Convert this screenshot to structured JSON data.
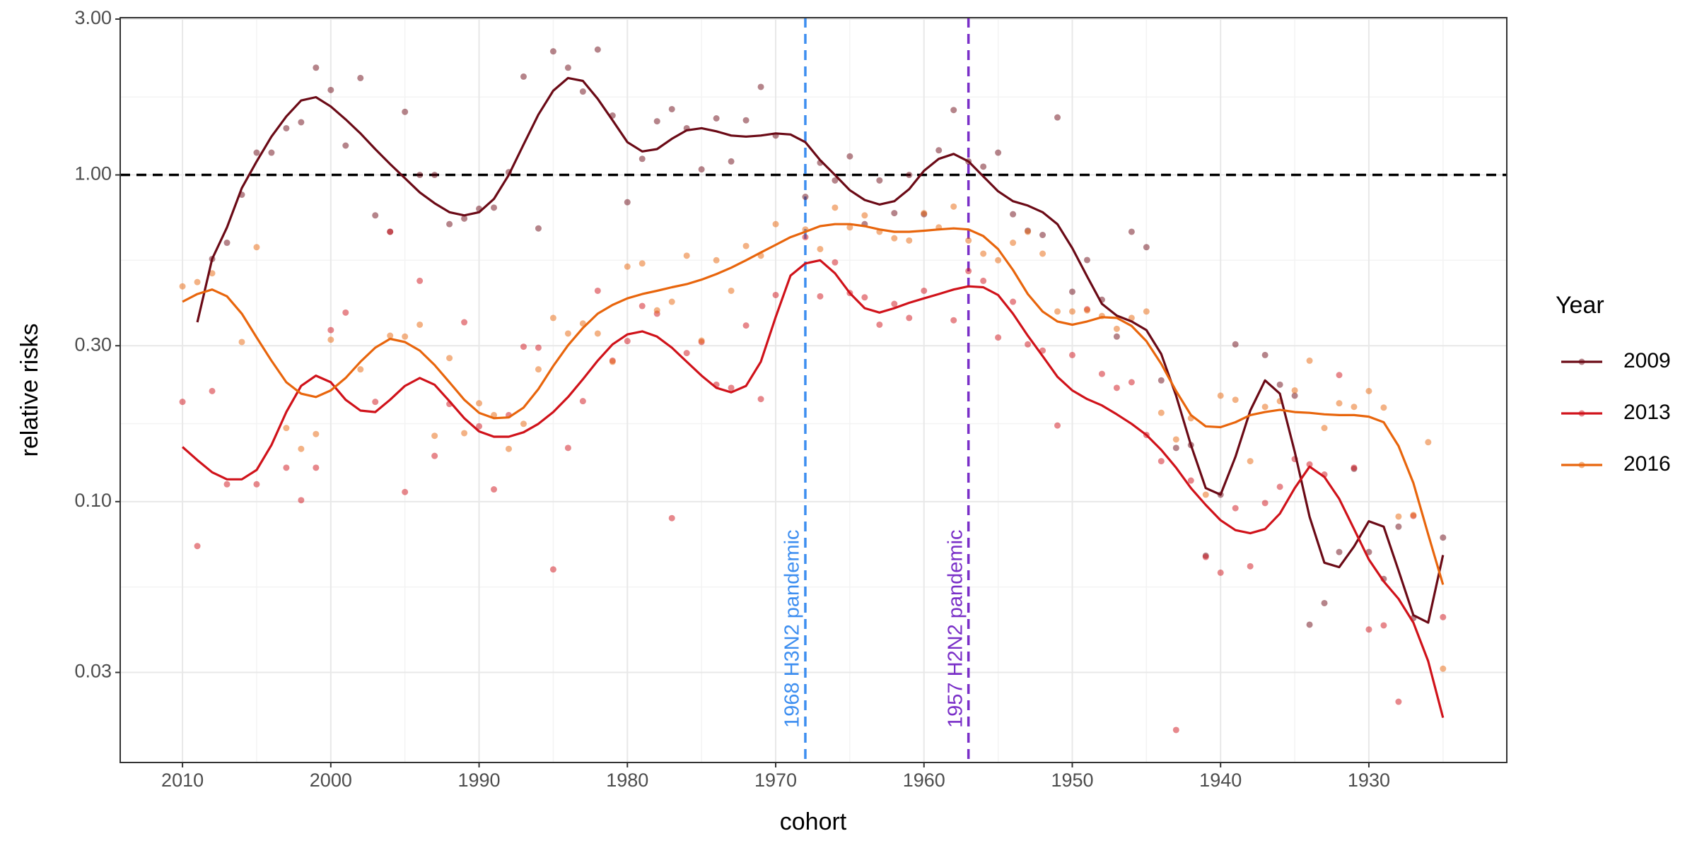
{
  "chart_data": {
    "type": "line",
    "x_label": "cohort",
    "y_label": "relative risks",
    "ylog": true,
    "grid": true,
    "xlim": [
      2014.2,
      1920.7
    ],
    "xticks": [
      2010,
      2000,
      1990,
      1980,
      1970,
      1960,
      1950,
      1940,
      1930
    ],
    "ylim": [
      0.0159,
      3.03
    ],
    "yticks": [
      {
        "value": 0.03,
        "label": "0.03"
      },
      {
        "value": 0.1,
        "label": "0.10"
      },
      {
        "value": 0.3,
        "label": "0.30"
      },
      {
        "value": 1,
        "label": "1.00"
      },
      {
        "value": 3,
        "label": "3.00"
      }
    ],
    "hline": {
      "y": 1,
      "color": "#000000"
    },
    "vlines": [
      {
        "x": 1968,
        "color": "#3d8ef0",
        "label": "1968 H3N2 pandemic"
      },
      {
        "x": 1957,
        "color": "#7a2fc8",
        "label": "1957 H2N2 pandemic"
      }
    ],
    "legend_title": "Year",
    "legend_position": "right",
    "series": [
      {
        "name": "2009",
        "color": "#6b0a16",
        "x": [
          2009,
          2008,
          2007,
          2006,
          2005,
          2004,
          2003,
          2002,
          2001,
          2000,
          1999,
          1998,
          1997,
          1996,
          1995,
          1994,
          1993,
          1992,
          1991,
          1990,
          1989,
          1988,
          1987,
          1986,
          1985,
          1984,
          1983,
          1982,
          1981,
          1980,
          1979,
          1978,
          1977,
          1976,
          1975,
          1974,
          1973,
          1972,
          1971,
          1970,
          1969,
          1968,
          1967,
          1966,
          1965,
          1964,
          1963,
          1962,
          1961,
          1960,
          1959,
          1958,
          1957,
          1956,
          1955,
          1954,
          1953,
          1952,
          1951,
          1950,
          1949,
          1948,
          1947,
          1946,
          1945,
          1944,
          1943,
          1942,
          1941,
          1940,
          1939,
          1938,
          1937,
          1936,
          1935,
          1934,
          1933,
          1932,
          1931,
          1930,
          1929,
          1928,
          1927,
          1926,
          1925
        ],
        "values": [
          0.354,
          0.553,
          0.691,
          0.912,
          1.1,
          1.31,
          1.51,
          1.69,
          1.73,
          1.62,
          1.48,
          1.34,
          1.2,
          1.08,
          0.977,
          0.884,
          0.819,
          0.769,
          0.752,
          0.769,
          0.844,
          1.0,
          1.24,
          1.53,
          1.81,
          1.98,
          1.94,
          1.71,
          1.47,
          1.26,
          1.18,
          1.2,
          1.29,
          1.37,
          1.39,
          1.36,
          1.32,
          1.31,
          1.32,
          1.34,
          1.33,
          1.26,
          1.11,
          1.0,
          0.898,
          0.838,
          0.812,
          0.831,
          0.905,
          1.03,
          1.12,
          1.16,
          1.1,
          0.99,
          0.891,
          0.831,
          0.806,
          0.769,
          0.707,
          0.597,
          0.489,
          0.403,
          0.371,
          0.356,
          0.335,
          0.283,
          0.211,
          0.149,
          0.11,
          0.105,
          0.137,
          0.19,
          0.235,
          0.214,
          0.142,
          0.0898,
          0.065,
          0.063,
          0.0729,
          0.0871,
          0.0838,
          0.0615,
          0.0449,
          0.0426,
          0.0686
        ],
        "points": {
          "x": [
            2008,
            2007,
            2006,
            2005,
            2004,
            2003,
            2002,
            2001,
            2000,
            1999,
            1998,
            1997,
            1996,
            1995,
            1994,
            1993,
            1992,
            1991,
            1990,
            1989,
            1988,
            1987,
            1986,
            1985,
            1984,
            1983,
            1982,
            1981,
            1980,
            1979,
            1978,
            1977,
            1976,
            1975,
            1974,
            1973,
            1972,
            1971,
            1970,
            1968,
            1967,
            1966,
            1965,
            1964,
            1963,
            1962,
            1961,
            1960,
            1959,
            1958,
            1957,
            1956,
            1955,
            1954,
            1953,
            1952,
            1951,
            1950,
            1949,
            1948,
            1947,
            1946,
            1945,
            1944,
            1943,
            1942,
            1941,
            1940,
            1939,
            1937,
            1936,
            1935,
            1934,
            1933,
            1932,
            1931,
            1930,
            1929,
            1928,
            1927,
            1925
          ],
          "values": [
            0.553,
            0.62,
            0.87,
            1.17,
            1.17,
            1.39,
            1.45,
            2.13,
            1.82,
            1.23,
            1.98,
            0.752,
            0.67,
            1.56,
            1.0,
            1.0,
            0.707,
            0.735,
            0.788,
            0.794,
            1.02,
            2.0,
            0.686,
            2.39,
            2.13,
            1.8,
            2.42,
            1.52,
            0.825,
            1.12,
            1.46,
            1.59,
            1.39,
            1.04,
            1.49,
            1.1,
            1.47,
            1.86,
            1.32,
            0.857,
            1.09,
            0.962,
            1.14,
            0.707,
            0.962,
            0.764,
            1.0,
            0.758,
            1.19,
            1.58,
            1.1,
            1.06,
            1.17,
            0.758,
            0.675,
            0.655,
            1.5,
            0.439,
            0.549,
            0.415,
            0.32,
            0.67,
            0.601,
            0.235,
            0.146,
            0.149,
            0.0683,
            0.105,
            0.303,
            0.281,
            0.228,
            0.211,
            0.042,
            0.0489,
            0.0701,
            0.126,
            0.0701,
            0.058,
            0.0838,
            0.044,
            0.0776
          ]
        }
      },
      {
        "name": "2013",
        "color": "#d0121a",
        "x": [
          2010,
          2009,
          2008,
          2007,
          2006,
          2005,
          2004,
          2003,
          2002,
          2001,
          2000,
          1999,
          1998,
          1997,
          1996,
          1995,
          1994,
          1993,
          1992,
          1991,
          1990,
          1989,
          1988,
          1987,
          1986,
          1985,
          1984,
          1983,
          1982,
          1981,
          1980,
          1979,
          1978,
          1977,
          1976,
          1975,
          1974,
          1973,
          1972,
          1971,
          1970,
          1969,
          1968,
          1967,
          1966,
          1965,
          1964,
          1963,
          1962,
          1961,
          1960,
          1959,
          1958,
          1957,
          1956,
          1955,
          1954,
          1953,
          1952,
          1951,
          1950,
          1949,
          1948,
          1947,
          1946,
          1945,
          1944,
          1943,
          1942,
          1941,
          1940,
          1939,
          1938,
          1937,
          1936,
          1935,
          1934,
          1933,
          1932,
          1931,
          1930,
          1929,
          1928,
          1927,
          1926,
          1925
        ],
        "values": [
          0.147,
          0.134,
          0.123,
          0.117,
          0.117,
          0.125,
          0.149,
          0.188,
          0.226,
          0.243,
          0.232,
          0.205,
          0.19,
          0.188,
          0.205,
          0.226,
          0.239,
          0.228,
          0.203,
          0.18,
          0.164,
          0.158,
          0.158,
          0.163,
          0.173,
          0.188,
          0.209,
          0.237,
          0.27,
          0.303,
          0.325,
          0.332,
          0.32,
          0.296,
          0.268,
          0.243,
          0.223,
          0.216,
          0.226,
          0.268,
          0.367,
          0.492,
          0.536,
          0.548,
          0.5,
          0.435,
          0.391,
          0.379,
          0.391,
          0.406,
          0.419,
          0.432,
          0.446,
          0.456,
          0.453,
          0.429,
          0.376,
          0.322,
          0.279,
          0.241,
          0.219,
          0.206,
          0.197,
          0.185,
          0.173,
          0.16,
          0.144,
          0.127,
          0.11,
          0.0977,
          0.0877,
          0.0818,
          0.08,
          0.0824,
          0.0919,
          0.11,
          0.128,
          0.119,
          0.102,
          0.0824,
          0.0665,
          0.057,
          0.0504,
          0.0426,
          0.0325,
          0.0218
        ],
        "points": {
          "x": [
            2010,
            2009,
            2008,
            2007,
            2005,
            2003,
            2002,
            2001,
            2000,
            1999,
            1997,
            1996,
            1995,
            1994,
            1993,
            1992,
            1991,
            1990,
            1989,
            1988,
            1987,
            1986,
            1985,
            1984,
            1983,
            1982,
            1981,
            1980,
            1979,
            1978,
            1977,
            1976,
            1975,
            1974,
            1973,
            1972,
            1971,
            1970,
            1968,
            1967,
            1966,
            1965,
            1964,
            1963,
            1962,
            1961,
            1960,
            1958,
            1957,
            1956,
            1955,
            1954,
            1953,
            1952,
            1951,
            1950,
            1949,
            1948,
            1947,
            1946,
            1945,
            1944,
            1943,
            1942,
            1941,
            1940,
            1939,
            1938,
            1937,
            1936,
            1935,
            1934,
            1933,
            1932,
            1931,
            1930,
            1929,
            1928,
            1927,
            1925
          ],
          "values": [
            0.202,
            0.0731,
            0.218,
            0.113,
            0.113,
            0.127,
            0.101,
            0.127,
            0.335,
            0.379,
            0.202,
            0.67,
            0.107,
            0.474,
            0.138,
            0.199,
            0.354,
            0.17,
            0.109,
            0.184,
            0.298,
            0.296,
            0.062,
            0.146,
            0.203,
            0.442,
            0.27,
            0.31,
            0.397,
            0.376,
            0.089,
            0.285,
            0.308,
            0.228,
            0.223,
            0.346,
            0.206,
            0.429,
            0.645,
            0.425,
            0.54,
            0.435,
            0.422,
            0.348,
            0.403,
            0.365,
            0.442,
            0.359,
            0.508,
            0.474,
            0.318,
            0.409,
            0.303,
            0.29,
            0.171,
            0.281,
            0.388,
            0.246,
            0.223,
            0.232,
            0.16,
            0.133,
            0.02,
            0.116,
            0.0677,
            0.0606,
            0.0955,
            0.0634,
            0.099,
            0.111,
            0.135,
            0.13,
            0.121,
            0.244,
            0.127,
            0.0406,
            0.0418,
            0.0244,
            0.0904,
            0.0443
          ]
        }
      },
      {
        "name": "2016",
        "color": "#e8650c",
        "x": [
          2010,
          2009,
          2008,
          2007,
          2006,
          2005,
          2004,
          2003,
          2002,
          2001,
          2000,
          1999,
          1998,
          1997,
          1996,
          1995,
          1994,
          1993,
          1992,
          1991,
          1990,
          1989,
          1988,
          1987,
          1986,
          1985,
          1984,
          1983,
          1982,
          1981,
          1980,
          1979,
          1978,
          1977,
          1976,
          1975,
          1974,
          1973,
          1972,
          1971,
          1970,
          1969,
          1968,
          1967,
          1966,
          1965,
          1964,
          1963,
          1962,
          1961,
          1960,
          1959,
          1958,
          1957,
          1956,
          1955,
          1954,
          1953,
          1952,
          1951,
          1950,
          1949,
          1948,
          1947,
          1946,
          1945,
          1944,
          1943,
          1942,
          1941,
          1940,
          1939,
          1938,
          1937,
          1936,
          1935,
          1934,
          1933,
          1932,
          1931,
          1930,
          1929,
          1928,
          1927,
          1926,
          1925
        ],
        "values": [
          0.409,
          0.432,
          0.446,
          0.425,
          0.376,
          0.318,
          0.27,
          0.232,
          0.214,
          0.209,
          0.219,
          0.239,
          0.268,
          0.296,
          0.315,
          0.308,
          0.29,
          0.262,
          0.232,
          0.205,
          0.187,
          0.18,
          0.181,
          0.194,
          0.221,
          0.26,
          0.301,
          0.34,
          0.376,
          0.4,
          0.419,
          0.432,
          0.442,
          0.453,
          0.463,
          0.478,
          0.497,
          0.52,
          0.548,
          0.579,
          0.611,
          0.645,
          0.67,
          0.697,
          0.707,
          0.707,
          0.697,
          0.681,
          0.67,
          0.67,
          0.675,
          0.681,
          0.686,
          0.681,
          0.65,
          0.593,
          0.512,
          0.432,
          0.382,
          0.356,
          0.348,
          0.356,
          0.367,
          0.365,
          0.345,
          0.31,
          0.264,
          0.218,
          0.184,
          0.17,
          0.169,
          0.175,
          0.184,
          0.188,
          0.191,
          0.188,
          0.187,
          0.185,
          0.184,
          0.184,
          0.182,
          0.175,
          0.148,
          0.114,
          0.0794,
          0.0557
        ],
        "points": {
          "x": [
            2010,
            2009,
            2008,
            2006,
            2005,
            2003,
            2002,
            2001,
            2000,
            1998,
            1996,
            1995,
            1994,
            1993,
            1992,
            1991,
            1990,
            1989,
            1988,
            1987,
            1986,
            1985,
            1984,
            1983,
            1982,
            1981,
            1980,
            1979,
            1978,
            1977,
            1976,
            1975,
            1974,
            1973,
            1972,
            1971,
            1970,
            1968,
            1967,
            1966,
            1965,
            1964,
            1963,
            1962,
            1961,
            1960,
            1959,
            1958,
            1957,
            1956,
            1955,
            1954,
            1953,
            1952,
            1951,
            1950,
            1949,
            1948,
            1947,
            1946,
            1945,
            1944,
            1943,
            1942,
            1941,
            1940,
            1939,
            1938,
            1937,
            1936,
            1935,
            1934,
            1933,
            1932,
            1931,
            1930,
            1929,
            1928,
            1927,
            1926,
            1925
          ],
          "values": [
            0.456,
            0.47,
            0.5,
            0.308,
            0.601,
            0.168,
            0.145,
            0.161,
            0.313,
            0.254,
            0.322,
            0.32,
            0.348,
            0.159,
            0.275,
            0.162,
            0.2,
            0.184,
            0.145,
            0.173,
            0.254,
            0.365,
            0.327,
            0.351,
            0.327,
            0.268,
            0.524,
            0.536,
            0.385,
            0.409,
            0.566,
            0.311,
            0.548,
            0.442,
            0.606,
            0.566,
            0.707,
            0.681,
            0.593,
            0.794,
            0.691,
            0.752,
            0.67,
            0.64,
            0.63,
            0.764,
            0.691,
            0.8,
            0.63,
            0.574,
            0.548,
            0.62,
            0.67,
            0.574,
            0.382,
            0.382,
            0.385,
            0.37,
            0.338,
            0.365,
            0.382,
            0.187,
            0.155,
            0.18,
            0.105,
            0.211,
            0.205,
            0.133,
            0.195,
            0.203,
            0.219,
            0.27,
            0.168,
            0.2,
            0.195,
            0.218,
            0.194,
            0.09,
            0.091,
            0.152,
            0.0308
          ]
        }
      }
    ]
  }
}
